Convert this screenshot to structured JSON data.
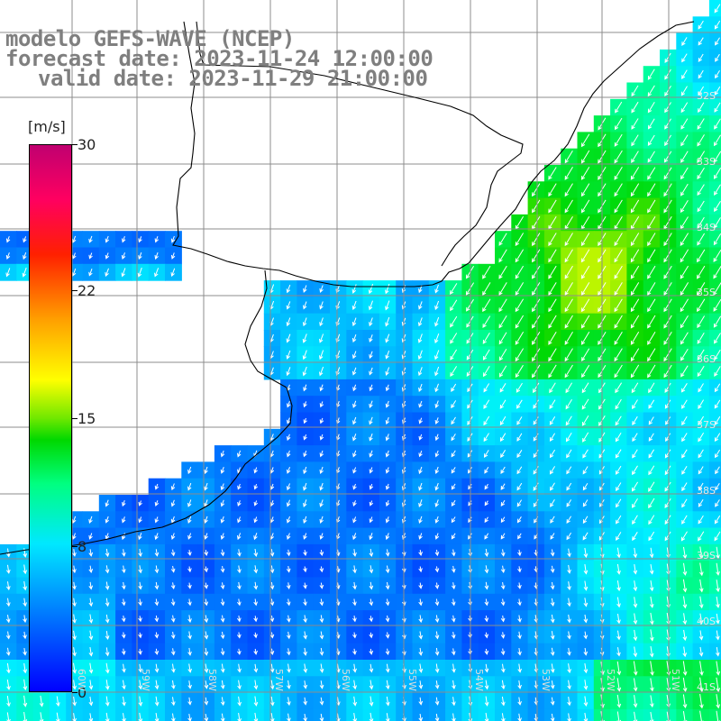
{
  "title": {
    "line1": "modelo GEFS-WAVE (NCEP)",
    "line2": "forecast date: 2023-11-24 12:00:00",
    "line3": "valid date: 2023-11-29 21:00:00"
  },
  "colorbar": {
    "unit": "[m/s]",
    "ticks": [
      "30",
      "22",
      "15",
      "8",
      "0"
    ],
    "tick_values": [
      30,
      22,
      15,
      8,
      0
    ],
    "min": 0,
    "max": 30
  },
  "lat_labels": [
    "32S",
    "33S",
    "34S",
    "35S",
    "36S",
    "37S",
    "38S",
    "39S",
    "40S",
    "41S"
  ],
  "lon_labels": [
    "60W",
    "59W",
    "58W",
    "57W",
    "56W",
    "55W",
    "54W",
    "53W",
    "52W",
    "51W"
  ],
  "colors": {
    "land": "#ffffff",
    "coast": "#000000",
    "grid": "#8c8c8c",
    "arrow": "#ffffff",
    "title": "#7f7f7f"
  }
}
